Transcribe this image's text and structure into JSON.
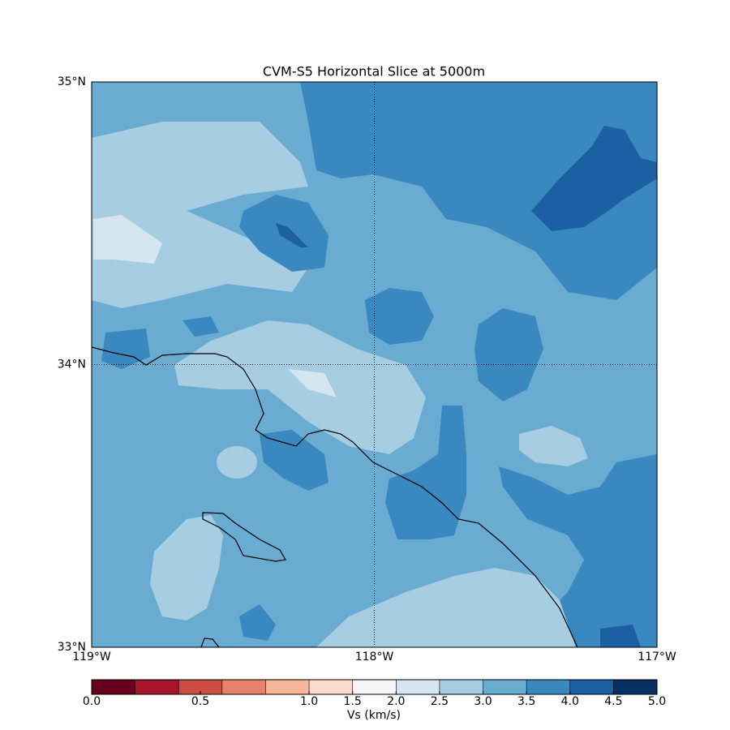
{
  "map": {
    "title": "CVM-S5 Horizontal Slice at 5000m",
    "xlim": [
      -119,
      -117
    ],
    "ylim": [
      33,
      35
    ],
    "xticks": [
      {
        "value": -119,
        "label": "119°W"
      },
      {
        "value": -118,
        "label": "118°W"
      },
      {
        "value": -117,
        "label": "117°W"
      }
    ],
    "yticks": [
      {
        "value": 35,
        "label": "35°N"
      },
      {
        "value": 34,
        "label": "34°N"
      },
      {
        "value": 33,
        "label": "33°N"
      }
    ],
    "grid": true
  },
  "colorbar": {
    "label": "Vs (km/s)",
    "boundaries": [
      0,
      0.2,
      0.4,
      0.6,
      0.8,
      1.0,
      1.5,
      2.0,
      2.5,
      3.0,
      3.5,
      4.0,
      4.5,
      5.0
    ],
    "colors": [
      "#67001f",
      "#a51429",
      "#cc4c43",
      "#e6836a",
      "#f5b699",
      "#fbdcca",
      "#f5f5f5",
      "#d5e6f0",
      "#a7cde3",
      "#6aabd2",
      "#3a88c0",
      "#1d5fa3",
      "#053061"
    ],
    "ticks": [
      {
        "value": 0,
        "label": "0.0"
      },
      0.5,
      {
        "value": 1,
        "label": "1.0"
      },
      1.5,
      {
        "value": 2,
        "label": "2.0"
      },
      2.5,
      {
        "value": 3,
        "label": "3.0"
      },
      3.5,
      {
        "value": 4,
        "label": "4.0"
      },
      4.5,
      {
        "value": 5,
        "label": "5.0"
      }
    ]
  }
}
